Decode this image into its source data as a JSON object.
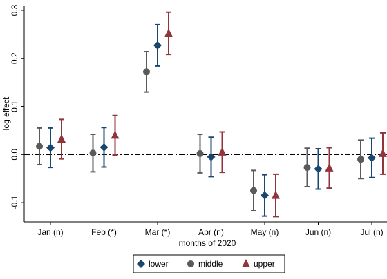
{
  "chart_data": {
    "type": "errorbar",
    "x_label": "months of 2020",
    "y_label": "log effect",
    "categories": [
      "Jan (n)",
      "Feb (*)",
      "Mar (*)",
      "Apr (n)",
      "May (n)",
      "Jun (n)",
      "Jul (n)"
    ],
    "series": [
      {
        "name": "lower",
        "color": "#1a476f",
        "marker": "diamond",
        "values": [
          0.014,
          0.015,
          0.227,
          -0.005,
          -0.085,
          -0.03,
          -0.007
        ],
        "errors": [
          0.041,
          0.041,
          0.043,
          0.041,
          0.043,
          0.042,
          0.041
        ]
      },
      {
        "name": "middle",
        "color": "#5a5a5a",
        "marker": "circle",
        "values": [
          0.017,
          0.003,
          0.172,
          0.002,
          -0.075,
          -0.027,
          -0.01
        ],
        "errors": [
          0.038,
          0.039,
          0.042,
          0.04,
          0.042,
          0.04,
          0.04
        ]
      },
      {
        "name": "upper",
        "color": "#90353b",
        "marker": "triangle",
        "values": [
          0.032,
          0.04,
          0.252,
          0.005,
          -0.085,
          -0.028,
          0.002
        ],
        "errors": [
          0.041,
          0.041,
          0.044,
          0.042,
          0.044,
          0.042,
          0.043
        ]
      }
    ],
    "ylim": [
      -0.14,
      0.31
    ],
    "yticks": [
      -0.1,
      {
        "value": 0,
        "label": "0.0"
      },
      0.1,
      0.2,
      0.3
    ],
    "reference_line": 0,
    "legend": "bottom"
  }
}
